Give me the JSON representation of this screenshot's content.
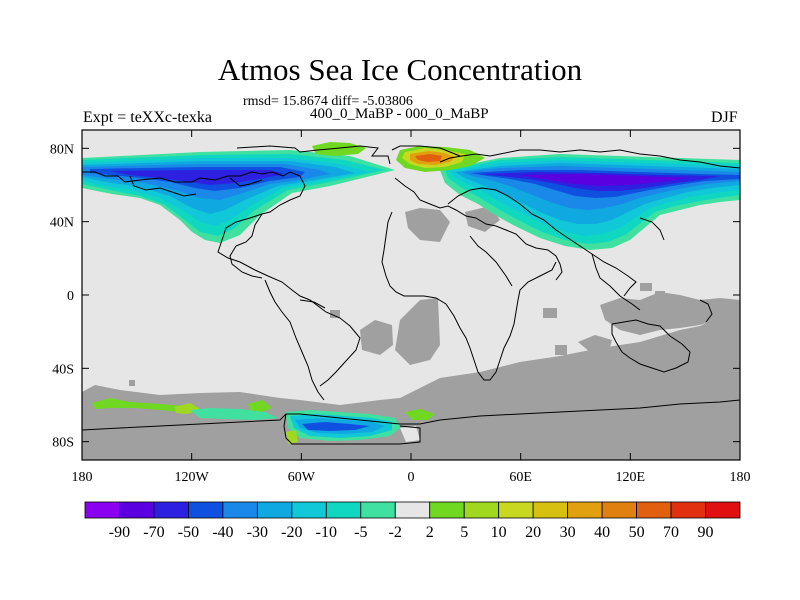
{
  "header": {
    "title": "Atmos Sea Ice Concentration",
    "stats": "rmsd= 15.8674 diff= -5.03806",
    "subtitle": "400_0_MaBP - 000_0_MaBP",
    "left_label": "Expt = teXXc-texka",
    "right_label": "DJF"
  },
  "map": {
    "projection": "cylindrical-equidistant",
    "lon_range": [
      -180,
      180
    ],
    "lat_range": [
      -90,
      90
    ],
    "x_ticks": [
      {
        "value": -180,
        "label": "180"
      },
      {
        "value": -120,
        "label": "120W"
      },
      {
        "value": -60,
        "label": "60W"
      },
      {
        "value": 0,
        "label": "0"
      },
      {
        "value": 60,
        "label": "60E"
      },
      {
        "value": 120,
        "label": "120E"
      },
      {
        "value": 180,
        "label": "180"
      }
    ],
    "y_ticks": [
      {
        "value": 80,
        "label": "80N"
      },
      {
        "value": 40,
        "label": "40N"
      },
      {
        "value": 0,
        "label": "0"
      },
      {
        "value": -40,
        "label": "40S"
      },
      {
        "value": -80,
        "label": "80S"
      }
    ],
    "colors": {
      "background_field": "#e6e6e6",
      "missing": "#a0a0a0",
      "coastline": "#000000"
    }
  },
  "colorbar": {
    "labels": [
      "-90",
      "-70",
      "-50",
      "-40",
      "-30",
      "-20",
      "-10",
      "-5",
      "-2",
      "2",
      "5",
      "10",
      "20",
      "30",
      "40",
      "50",
      "70",
      "90"
    ],
    "colors": [
      "#8a00f0",
      "#5a00e0",
      "#2d20e0",
      "#1050e0",
      "#1a88e8",
      "#10a8e0",
      "#10c8d8",
      "#10d8c0",
      "#40e0a0",
      "#e6e6e6",
      "#70d820",
      "#a0d820",
      "#c8d820",
      "#d8c010",
      "#e0a010",
      "#e08010",
      "#e06010",
      "#e03010",
      "#e01010"
    ]
  }
}
